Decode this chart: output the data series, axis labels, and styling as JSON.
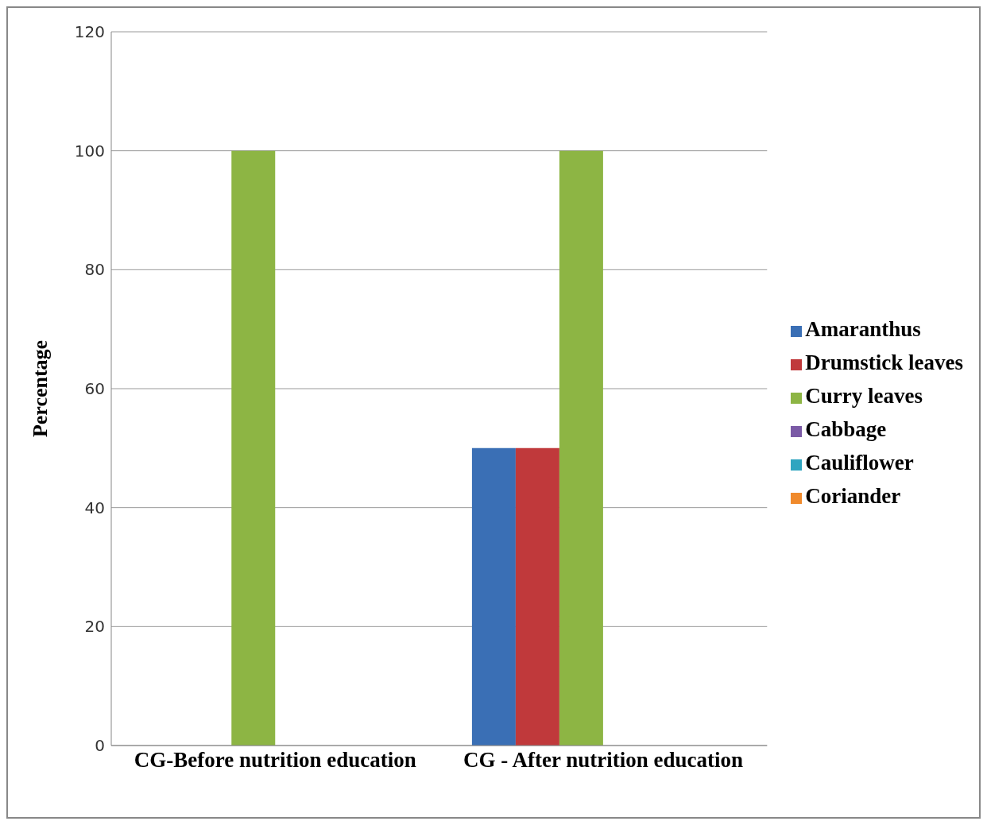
{
  "chart_data": {
    "type": "bar",
    "ylabel": "Percentage",
    "categories": [
      "CG-Before nutrition education",
      "CG - After nutrition education"
    ],
    "series": [
      {
        "name": "Amaranthus",
        "color": "#3a6fb5",
        "values": [
          0,
          50
        ]
      },
      {
        "name": "Drumstick leaves",
        "color": "#c0393b",
        "values": [
          0,
          50
        ]
      },
      {
        "name": "Curry leaves",
        "color": "#8db544",
        "values": [
          100,
          100
        ]
      },
      {
        "name": "Cabbage",
        "color": "#7b5aa6",
        "values": [
          0,
          0
        ]
      },
      {
        "name": "Cauliflower",
        "color": "#2fa5c0",
        "values": [
          0,
          0
        ]
      },
      {
        "name": "Coriander",
        "color": "#f08a2c",
        "values": [
          0,
          0
        ]
      }
    ],
    "ylim": [
      0,
      120
    ],
    "yticks": [
      0,
      20,
      40,
      60,
      80,
      100,
      120
    ],
    "grid": "y",
    "legend": "right"
  }
}
